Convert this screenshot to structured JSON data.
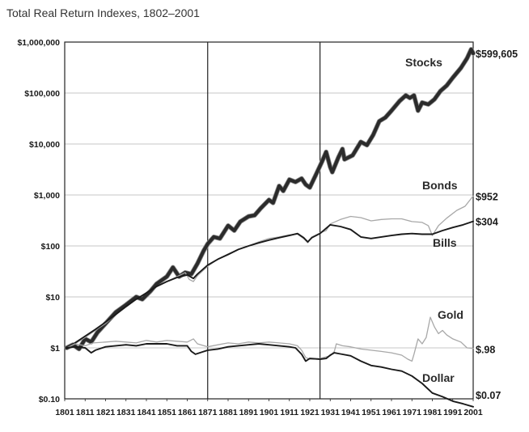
{
  "chart_data": {
    "type": "line",
    "title": "Total Real Return Indexes, 1802–2001",
    "xlabel": "",
    "ylabel": "",
    "xlim": [
      1801,
      2001
    ],
    "ylim": [
      0.1,
      1000000
    ],
    "yscale": "log",
    "grid": true,
    "x_ticks": [
      1801,
      1811,
      1821,
      1831,
      1841,
      1851,
      1861,
      1871,
      1881,
      1891,
      1901,
      1911,
      1921,
      1931,
      1941,
      1951,
      1961,
      1971,
      1981,
      1991,
      2001
    ],
    "y_ticks": [
      {
        "value": 1000000,
        "label": "$1,000,000"
      },
      {
        "value": 100000,
        "label": "$100,000"
      },
      {
        "value": 10000,
        "label": "$10,000"
      },
      {
        "value": 1000,
        "label": "$1,000"
      },
      {
        "value": 100,
        "label": "$100"
      },
      {
        "value": 10,
        "label": "$10"
      },
      {
        "value": 1,
        "label": "$1"
      },
      {
        "value": 0.1,
        "label": "$0.10"
      }
    ],
    "vertical_lines": [
      1871,
      1926
    ],
    "series": [
      {
        "name": "Stocks",
        "end_label": "$599,605",
        "color": "#2b2b2b",
        "style": "thick",
        "points": [
          [
            1802,
            1
          ],
          [
            1805,
            1.15
          ],
          [
            1808,
            0.95
          ],
          [
            1811,
            1.5
          ],
          [
            1814,
            1.3
          ],
          [
            1817,
            2
          ],
          [
            1821,
            3
          ],
          [
            1826,
            5
          ],
          [
            1831,
            7
          ],
          [
            1836,
            10
          ],
          [
            1839,
            9
          ],
          [
            1843,
            13
          ],
          [
            1846,
            18
          ],
          [
            1851,
            25
          ],
          [
            1854,
            38
          ],
          [
            1857,
            25
          ],
          [
            1860,
            30
          ],
          [
            1863,
            28
          ],
          [
            1866,
            45
          ],
          [
            1869,
            80
          ],
          [
            1871,
            110
          ],
          [
            1874,
            150
          ],
          [
            1877,
            140
          ],
          [
            1881,
            250
          ],
          [
            1884,
            200
          ],
          [
            1887,
            300
          ],
          [
            1891,
            380
          ],
          [
            1894,
            400
          ],
          [
            1897,
            550
          ],
          [
            1901,
            800
          ],
          [
            1903,
            700
          ],
          [
            1906,
            1500
          ],
          [
            1908,
            1200
          ],
          [
            1911,
            2000
          ],
          [
            1914,
            1800
          ],
          [
            1917,
            2100
          ],
          [
            1919,
            1600
          ],
          [
            1921,
            1400
          ],
          [
            1924,
            2500
          ],
          [
            1927,
            4500
          ],
          [
            1929,
            7000
          ],
          [
            1931,
            3500
          ],
          [
            1932,
            2800
          ],
          [
            1935,
            5500
          ],
          [
            1937,
            8000
          ],
          [
            1938,
            5000
          ],
          [
            1942,
            6000
          ],
          [
            1946,
            11000
          ],
          [
            1949,
            9500
          ],
          [
            1952,
            15000
          ],
          [
            1955,
            28000
          ],
          [
            1958,
            33000
          ],
          [
            1961,
            45000
          ],
          [
            1965,
            70000
          ],
          [
            1968,
            90000
          ],
          [
            1970,
            80000
          ],
          [
            1972,
            90000
          ],
          [
            1974,
            45000
          ],
          [
            1976,
            65000
          ],
          [
            1979,
            60000
          ],
          [
            1982,
            75000
          ],
          [
            1985,
            110000
          ],
          [
            1988,
            140000
          ],
          [
            1991,
            200000
          ],
          [
            1995,
            310000
          ],
          [
            1998,
            480000
          ],
          [
            2000,
            720000
          ],
          [
            2001,
            599605
          ]
        ]
      },
      {
        "name": "Bonds",
        "end_label": "$952",
        "color": "#a8a8a8",
        "style": "thin",
        "points": [
          [
            1802,
            1
          ],
          [
            1806,
            1.2
          ],
          [
            1811,
            1.6
          ],
          [
            1816,
            2.2
          ],
          [
            1821,
            3
          ],
          [
            1826,
            4.5
          ],
          [
            1831,
            6.5
          ],
          [
            1836,
            9
          ],
          [
            1841,
            12
          ],
          [
            1846,
            16
          ],
          [
            1851,
            20
          ],
          [
            1856,
            25
          ],
          [
            1860,
            30
          ],
          [
            1862,
            22
          ],
          [
            1864,
            20
          ],
          [
            1866,
            26
          ],
          [
            1871,
            40
          ],
          [
            1876,
            55
          ],
          [
            1881,
            70
          ],
          [
            1886,
            85
          ],
          [
            1891,
            100
          ],
          [
            1896,
            120
          ],
          [
            1901,
            140
          ],
          [
            1906,
            150
          ],
          [
            1911,
            165
          ],
          [
            1915,
            170
          ],
          [
            1918,
            140
          ],
          [
            1920,
            115
          ],
          [
            1922,
            150
          ],
          [
            1926,
            180
          ],
          [
            1929,
            200
          ],
          [
            1931,
            270
          ],
          [
            1936,
            330
          ],
          [
            1941,
            380
          ],
          [
            1946,
            360
          ],
          [
            1951,
            310
          ],
          [
            1956,
            330
          ],
          [
            1961,
            340
          ],
          [
            1966,
            340
          ],
          [
            1971,
            300
          ],
          [
            1976,
            290
          ],
          [
            1979,
            250
          ],
          [
            1981,
            160
          ],
          [
            1984,
            250
          ],
          [
            1988,
            350
          ],
          [
            1993,
            500
          ],
          [
            1997,
            600
          ],
          [
            2000,
            850
          ],
          [
            2001,
            952
          ]
        ]
      },
      {
        "name": "Bills",
        "end_label": "$304",
        "color": "#1a1a1a",
        "style": "medium",
        "points": [
          [
            1802,
            1
          ],
          [
            1806,
            1.25
          ],
          [
            1811,
            1.7
          ],
          [
            1816,
            2.3
          ],
          [
            1821,
            3.2
          ],
          [
            1826,
            4.5
          ],
          [
            1831,
            6.5
          ],
          [
            1836,
            9
          ],
          [
            1841,
            12
          ],
          [
            1846,
            16
          ],
          [
            1851,
            20
          ],
          [
            1856,
            24
          ],
          [
            1861,
            27
          ],
          [
            1864,
            23
          ],
          [
            1866,
            28
          ],
          [
            1871,
            42
          ],
          [
            1876,
            55
          ],
          [
            1881,
            68
          ],
          [
            1886,
            85
          ],
          [
            1891,
            100
          ],
          [
            1896,
            115
          ],
          [
            1901,
            130
          ],
          [
            1906,
            145
          ],
          [
            1911,
            160
          ],
          [
            1915,
            175
          ],
          [
            1918,
            145
          ],
          [
            1920,
            120
          ],
          [
            1922,
            145
          ],
          [
            1926,
            175
          ],
          [
            1931,
            260
          ],
          [
            1936,
            240
          ],
          [
            1941,
            210
          ],
          [
            1946,
            150
          ],
          [
            1951,
            140
          ],
          [
            1956,
            150
          ],
          [
            1961,
            160
          ],
          [
            1966,
            170
          ],
          [
            1971,
            175
          ],
          [
            1976,
            170
          ],
          [
            1981,
            170
          ],
          [
            1986,
            200
          ],
          [
            1991,
            230
          ],
          [
            1996,
            260
          ],
          [
            2001,
            304
          ]
        ]
      },
      {
        "name": "Gold",
        "end_label": "$.98",
        "color": "#a8a8a8",
        "style": "thin",
        "points": [
          [
            1802,
            1
          ],
          [
            1806,
            1.2
          ],
          [
            1811,
            1.1
          ],
          [
            1815,
            1.25
          ],
          [
            1821,
            1.3
          ],
          [
            1826,
            1.35
          ],
          [
            1831,
            1.3
          ],
          [
            1836,
            1.25
          ],
          [
            1841,
            1.4
          ],
          [
            1846,
            1.3
          ],
          [
            1851,
            1.4
          ],
          [
            1856,
            1.35
          ],
          [
            1861,
            1.3
          ],
          [
            1864,
            1.5
          ],
          [
            1866,
            1.2
          ],
          [
            1871,
            1.05
          ],
          [
            1876,
            1.15
          ],
          [
            1881,
            1.25
          ],
          [
            1886,
            1.2
          ],
          [
            1891,
            1.3
          ],
          [
            1896,
            1.25
          ],
          [
            1901,
            1.3
          ],
          [
            1906,
            1.25
          ],
          [
            1911,
            1.2
          ],
          [
            1915,
            1.1
          ],
          [
            1917,
            0.9
          ],
          [
            1919,
            0.65
          ],
          [
            1921,
            0.6
          ],
          [
            1923,
            0.6
          ],
          [
            1926,
            0.62
          ],
          [
            1931,
            0.7
          ],
          [
            1933,
            0.85
          ],
          [
            1934,
            1.2
          ],
          [
            1937,
            1.1
          ],
          [
            1941,
            1.05
          ],
          [
            1946,
            0.95
          ],
          [
            1951,
            0.9
          ],
          [
            1956,
            0.85
          ],
          [
            1961,
            0.8
          ],
          [
            1966,
            0.72
          ],
          [
            1969,
            0.6
          ],
          [
            1971,
            0.55
          ],
          [
            1972,
            0.75
          ],
          [
            1974,
            1.5
          ],
          [
            1976,
            1.2
          ],
          [
            1978,
            1.6
          ],
          [
            1980,
            4
          ],
          [
            1982,
            2.6
          ],
          [
            1984,
            1.9
          ],
          [
            1986,
            2.2
          ],
          [
            1988,
            1.8
          ],
          [
            1991,
            1.5
          ],
          [
            1995,
            1.3
          ],
          [
            1998,
            1.0
          ],
          [
            2001,
            0.98
          ]
        ]
      },
      {
        "name": "Dollar",
        "end_label": "$0.07",
        "color": "#1a1a1a",
        "style": "medium",
        "points": [
          [
            1802,
            1
          ],
          [
            1806,
            1.05
          ],
          [
            1811,
            1.0
          ],
          [
            1814,
            0.8
          ],
          [
            1816,
            0.9
          ],
          [
            1821,
            1.05
          ],
          [
            1826,
            1.1
          ],
          [
            1831,
            1.15
          ],
          [
            1836,
            1.1
          ],
          [
            1841,
            1.2
          ],
          [
            1846,
            1.2
          ],
          [
            1851,
            1.2
          ],
          [
            1856,
            1.1
          ],
          [
            1861,
            1.1
          ],
          [
            1863,
            0.85
          ],
          [
            1865,
            0.75
          ],
          [
            1868,
            0.82
          ],
          [
            1871,
            0.9
          ],
          [
            1876,
            0.95
          ],
          [
            1881,
            1.05
          ],
          [
            1886,
            1.1
          ],
          [
            1891,
            1.15
          ],
          [
            1896,
            1.2
          ],
          [
            1901,
            1.15
          ],
          [
            1906,
            1.1
          ],
          [
            1911,
            1.05
          ],
          [
            1914,
            1.0
          ],
          [
            1917,
            0.75
          ],
          [
            1919,
            0.55
          ],
          [
            1921,
            0.62
          ],
          [
            1926,
            0.6
          ],
          [
            1929,
            0.62
          ],
          [
            1931,
            0.72
          ],
          [
            1933,
            0.8
          ],
          [
            1936,
            0.76
          ],
          [
            1941,
            0.7
          ],
          [
            1946,
            0.55
          ],
          [
            1951,
            0.45
          ],
          [
            1956,
            0.42
          ],
          [
            1961,
            0.38
          ],
          [
            1966,
            0.35
          ],
          [
            1971,
            0.28
          ],
          [
            1976,
            0.2
          ],
          [
            1981,
            0.13
          ],
          [
            1986,
            0.11
          ],
          [
            1991,
            0.09
          ],
          [
            1996,
            0.08
          ],
          [
            2001,
            0.07
          ]
        ]
      }
    ]
  }
}
